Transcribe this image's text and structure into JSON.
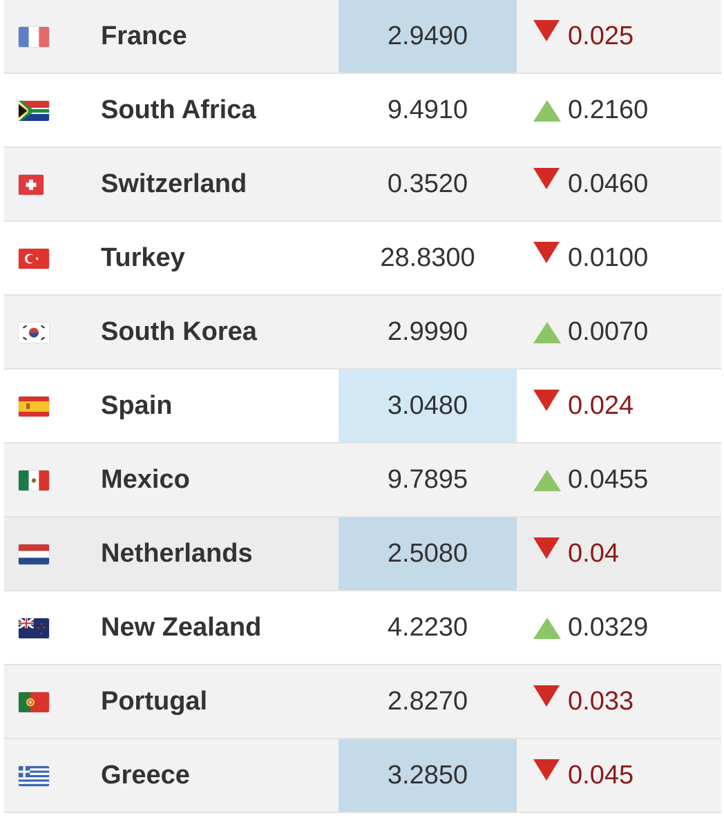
{
  "colors": {
    "row_odd": "#f2f2f2",
    "row_even": "#ffffff",
    "highlight_blue": "#c5dae8",
    "highlight_light_blue": "#d3e8f5",
    "arrow_down": "#d22b24",
    "arrow_up": "#8cc567",
    "change_red_text": "#8b1a1a",
    "text": "#333333"
  },
  "rows": [
    {
      "country": "France",
      "flag_icon": "france-flag-icon",
      "value": "2.9490",
      "direction": "down",
      "change": "0.025"
    },
    {
      "country": "South Africa",
      "flag_icon": "south-africa-flag-icon",
      "value": "9.4910",
      "direction": "up",
      "change": "0.2160"
    },
    {
      "country": "Switzerland",
      "flag_icon": "switzerland-flag-icon",
      "value": "0.3520",
      "direction": "down",
      "change": "0.0460"
    },
    {
      "country": "Turkey",
      "flag_icon": "turkey-flag-icon",
      "value": "28.8300",
      "direction": "down",
      "change": "0.0100"
    },
    {
      "country": "South Korea",
      "flag_icon": "south-korea-flag-icon",
      "value": "2.9990",
      "direction": "up",
      "change": "0.0070"
    },
    {
      "country": "Spain",
      "flag_icon": "spain-flag-icon",
      "value": "3.0480",
      "direction": "down",
      "change": "0.024"
    },
    {
      "country": "Mexico",
      "flag_icon": "mexico-flag-icon",
      "value": "9.7895",
      "direction": "up",
      "change": "0.0455"
    },
    {
      "country": "Netherlands",
      "flag_icon": "netherlands-flag-icon",
      "value": "2.5080",
      "direction": "down",
      "change": "0.04"
    },
    {
      "country": "New Zealand",
      "flag_icon": "new-zealand-flag-icon",
      "value": "4.2230",
      "direction": "up",
      "change": "0.0329"
    },
    {
      "country": "Portugal",
      "flag_icon": "portugal-flag-icon",
      "value": "2.8270",
      "direction": "down",
      "change": "0.033"
    },
    {
      "country": "Greece",
      "flag_icon": "greece-flag-icon",
      "value": "3.2850",
      "direction": "down",
      "change": "0.045"
    }
  ]
}
